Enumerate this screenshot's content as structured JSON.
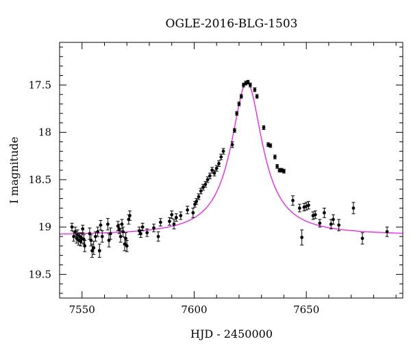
{
  "chart_data": {
    "type": "scatter",
    "title": "OGLE-2016-BLG-1503",
    "xlabel": "HJD - 2450000",
    "ylabel": "I magnitude",
    "xlim": [
      7540,
      7693
    ],
    "ylim": [
      19.75,
      17.05
    ],
    "y_inverted": true,
    "x_ticks": [
      7550,
      7600,
      7650
    ],
    "y_ticks": [
      17.5,
      18,
      18.5,
      19,
      19.5
    ],
    "grid": false,
    "colors": {
      "points": "#000000",
      "model": "#ff00ff",
      "frame": "#000000"
    },
    "series": [
      {
        "kind": "points-with-errorbars",
        "x": [
          7545.5,
          7546.3,
          7547.0,
          7547.6,
          7548.0,
          7548.5,
          7549.0,
          7549.4,
          7549.9,
          7550.3,
          7550.8,
          7551.2,
          7553.4,
          7554.0,
          7554.5,
          7555.2,
          7556.0,
          7557.0,
          7557.8,
          7558.3,
          7559.0,
          7561.5,
          7562.0,
          7562.7,
          7566.0,
          7566.6,
          7567.2,
          7567.8,
          7568.3,
          7569.0,
          7569.5,
          7570.0,
          7570.8,
          7571.3,
          7575.5,
          7576.2,
          7577.0,
          7579.0,
          7582.0,
          7584.0,
          7585.0,
          7589.0,
          7590.0,
          7591.0,
          7592.0,
          7594.0,
          7597.0,
          7599.5,
          7600.3,
          7601.0,
          7602.0,
          7603.0,
          7604.0,
          7605.0,
          7606.0,
          7607.0,
          7608.0,
          7609.0,
          7610.0,
          7611.0,
          7612.0,
          7613.0,
          7617.0,
          7618.0,
          7619.0,
          7620.0,
          7621.0,
          7622.0,
          7623.0,
          7624.0,
          7625.0,
          7627.0,
          7628.0,
          7631.0,
          7633.0,
          7634.0,
          7636.0,
          7637.0,
          7638.0,
          7639.0,
          7640.0,
          7644.0,
          7647.0,
          7648.0,
          7649.0,
          7650.0,
          7651.0,
          7653.0,
          7654.0,
          7656.0,
          7658.0,
          7661.0,
          7662.0,
          7664.5,
          7671.0,
          7675.0,
          7686.0
        ],
        "y": [
          19.0,
          19.1,
          19.05,
          19.12,
          19.08,
          19.14,
          19.1,
          19.15,
          19.12,
          19.02,
          19.13,
          19.2,
          19.07,
          19.14,
          19.25,
          19.22,
          19.1,
          19.05,
          19.25,
          18.98,
          19.1,
          18.97,
          19.14,
          19.07,
          18.99,
          19.02,
          19.1,
          18.97,
          19.05,
          19.18,
          19.12,
          19.2,
          18.92,
          18.88,
          19.04,
          19.07,
          19.0,
          19.06,
          19.01,
          19.1,
          18.95,
          18.94,
          18.87,
          18.97,
          18.9,
          18.88,
          18.82,
          18.85,
          18.76,
          18.73,
          18.68,
          18.62,
          18.58,
          18.55,
          18.5,
          18.46,
          18.4,
          18.43,
          18.38,
          18.33,
          18.26,
          18.2,
          18.13,
          17.98,
          17.8,
          17.7,
          17.62,
          17.5,
          17.48,
          17.47,
          17.5,
          17.55,
          17.62,
          17.95,
          18.13,
          18.14,
          18.26,
          18.36,
          18.4,
          18.4,
          18.41,
          18.72,
          18.8,
          19.11,
          18.79,
          18.78,
          18.77,
          18.88,
          18.87,
          18.96,
          18.85,
          18.97,
          18.92,
          18.98,
          18.8,
          19.12,
          19.05
        ],
        "err": [
          0.04,
          0.05,
          0.05,
          0.05,
          0.05,
          0.05,
          0.04,
          0.05,
          0.05,
          0.04,
          0.05,
          0.06,
          0.06,
          0.06,
          0.07,
          0.07,
          0.05,
          0.05,
          0.07,
          0.05,
          0.06,
          0.06,
          0.07,
          0.06,
          0.05,
          0.05,
          0.06,
          0.05,
          0.05,
          0.07,
          0.06,
          0.06,
          0.05,
          0.05,
          0.04,
          0.04,
          0.04,
          0.04,
          0.04,
          0.05,
          0.04,
          0.04,
          0.04,
          0.05,
          0.04,
          0.04,
          0.04,
          0.05,
          0.03,
          0.03,
          0.03,
          0.03,
          0.03,
          0.03,
          0.03,
          0.03,
          0.03,
          0.03,
          0.03,
          0.03,
          0.03,
          0.03,
          0.03,
          0.02,
          0.02,
          0.02,
          0.02,
          0.02,
          0.02,
          0.02,
          0.02,
          0.02,
          0.02,
          0.02,
          0.02,
          0.02,
          0.02,
          0.02,
          0.02,
          0.02,
          0.02,
          0.05,
          0.04,
          0.08,
          0.04,
          0.04,
          0.04,
          0.04,
          0.04,
          0.04,
          0.05,
          0.05,
          0.05,
          0.06,
          0.06,
          0.06,
          0.05
        ]
      },
      {
        "kind": "model-curve",
        "peak_x": 7623.5,
        "peak_y": 17.47,
        "baseline_y": 19.09,
        "fwhm_days": 17
      }
    ]
  }
}
